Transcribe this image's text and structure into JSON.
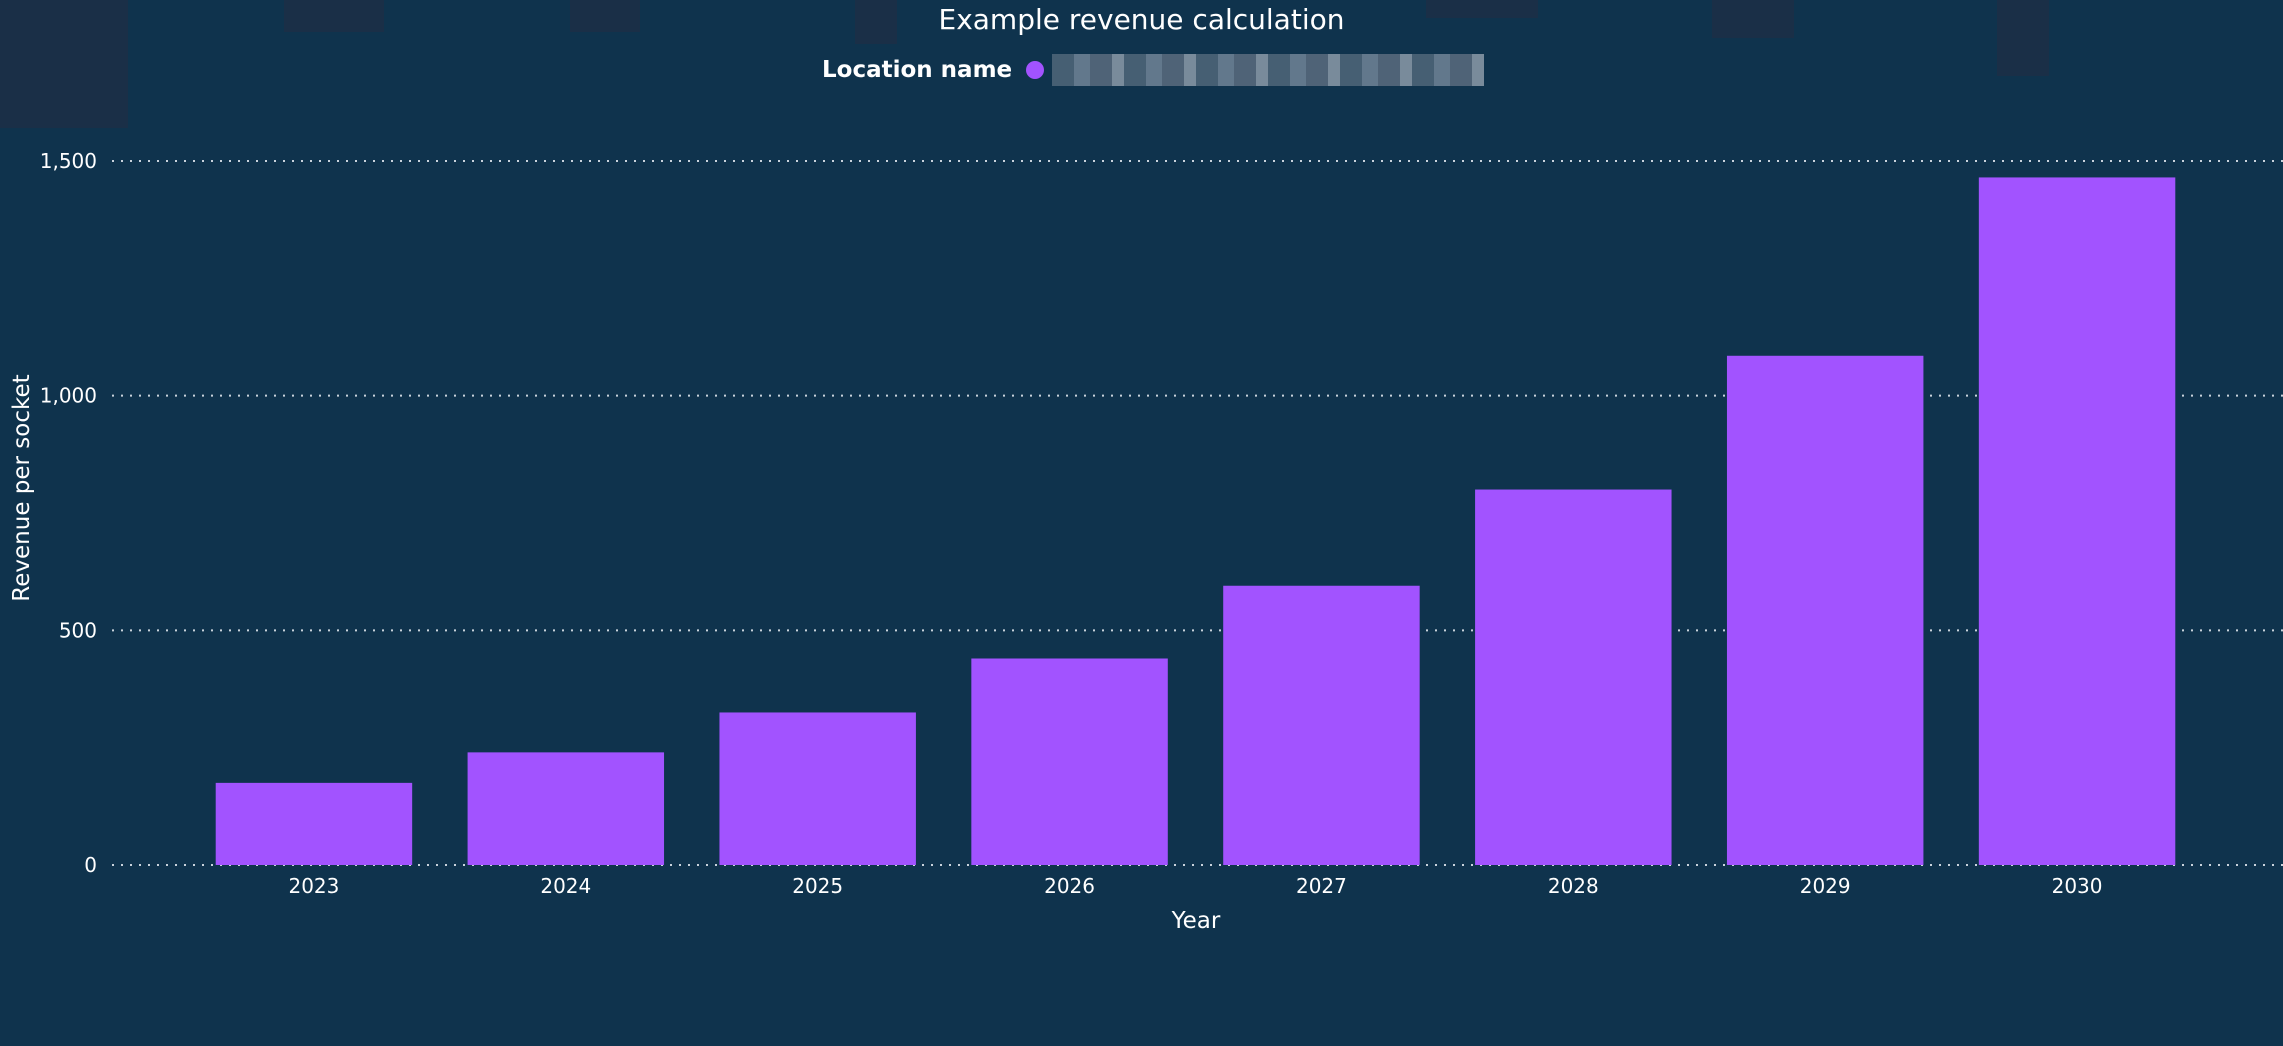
{
  "chart_data": {
    "type": "bar",
    "title": "Example revenue calculation",
    "legend": {
      "title": "Location name",
      "placement": "top-center"
    },
    "categories": [
      "2023",
      "2024",
      "2025",
      "2026",
      "2027",
      "2028",
      "2029",
      "2030"
    ],
    "values": [
      175,
      240,
      325,
      440,
      595,
      800,
      1085,
      1465
    ],
    "xlabel": "Year",
    "ylabel": "Revenue per socket",
    "ylim": [
      0,
      1500
    ],
    "yticks": [
      0,
      500,
      1000,
      1500
    ],
    "ytick_labels": [
      "0",
      "500",
      "1,000",
      "1,500"
    ],
    "grid": true,
    "bar_color": "#a253ff",
    "background_color": "#0f334d"
  }
}
